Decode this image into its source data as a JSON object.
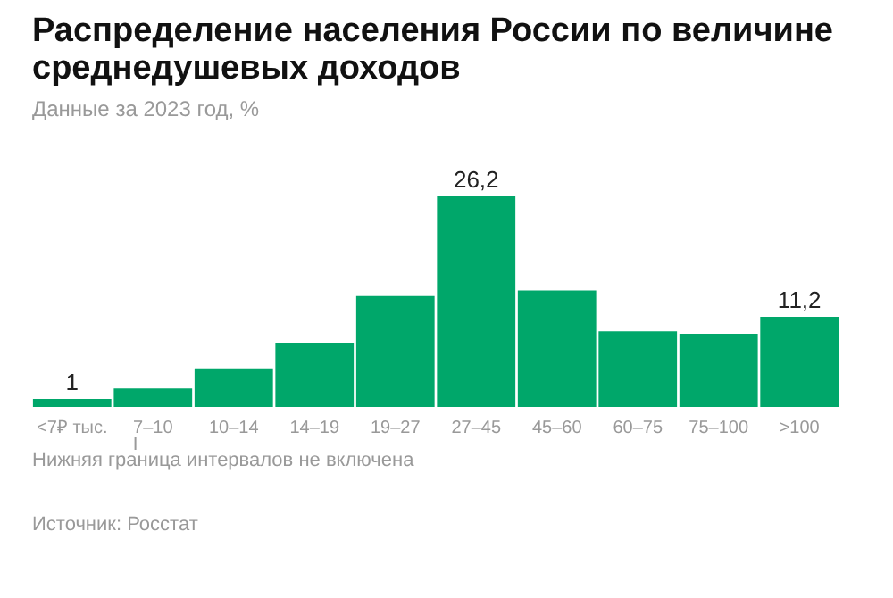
{
  "chart_data": {
    "type": "bar",
    "title": "Распределение населения России по величине среднедушевых доходов",
    "subtitle": "Данные за 2023 год, %",
    "categories": [
      "<7₽ тыс.",
      "7–10",
      "10–14",
      "14–19",
      "19–27",
      "27–45",
      "45–60",
      "60–75",
      "75–100",
      ">100"
    ],
    "values": [
      1,
      2.3,
      4.8,
      8.0,
      13.8,
      26.2,
      14.5,
      9.4,
      9.1,
      11.2
    ],
    "value_labels": [
      "1",
      null,
      null,
      null,
      null,
      "26,2",
      null,
      null,
      null,
      "11,2"
    ],
    "color": "#00a76a",
    "grid": false,
    "annotations": [
      "Нижняя граница интервалов не включена",
      "Источник: Росстат"
    ]
  }
}
